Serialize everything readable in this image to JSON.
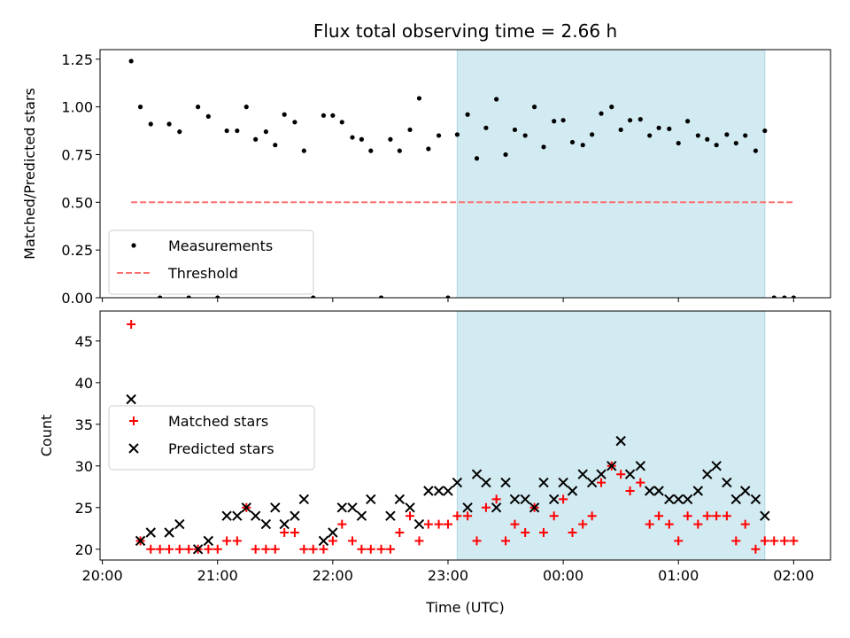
{
  "chart_data": [
    {
      "type": "scatter",
      "title": "Flux total observing time = 2.66 h",
      "xlabel": "",
      "ylabel": "Matched/Predicted stars",
      "xlim": [
        -0.02,
        6.32
      ],
      "ylim": [
        0.0,
        1.3
      ],
      "yticks": [
        0.0,
        0.25,
        0.5,
        0.75,
        1.0,
        1.25
      ],
      "ytick_labels": [
        "0.00",
        "0.25",
        "0.50",
        "0.75",
        "1.00",
        "1.25"
      ],
      "xticks": [
        0,
        1,
        2,
        3,
        4,
        5,
        6
      ],
      "grid": false,
      "legend": "lower-left",
      "shaded_region": {
        "x": [
          3.08,
          5.75
        ],
        "color": "#add8e6"
      },
      "threshold": {
        "name": "Threshold",
        "y": 0.5,
        "x": [
          0.25,
          6.0
        ],
        "color": "#ff7070"
      },
      "series": [
        {
          "name": "Measurements",
          "marker": "dot",
          "color": "#000000",
          "x": [
            0.25,
            0.33,
            0.42,
            0.5,
            0.58,
            0.67,
            0.75,
            0.83,
            0.92,
            1.0,
            1.08,
            1.17,
            1.25,
            1.33,
            1.42,
            1.5,
            1.58,
            1.67,
            1.75,
            1.83,
            1.92,
            2.0,
            2.08,
            2.17,
            2.25,
            2.33,
            2.42,
            2.5,
            2.58,
            2.67,
            2.75,
            2.83,
            2.92,
            3.0,
            3.08,
            3.17,
            3.25,
            3.33,
            3.42,
            3.5,
            3.58,
            3.67,
            3.75,
            3.83,
            3.92,
            4.0,
            4.08,
            4.17,
            4.25,
            4.33,
            4.42,
            4.5,
            4.58,
            4.67,
            4.75,
            4.83,
            4.92,
            5.0,
            5.08,
            5.17,
            5.25,
            5.33,
            5.42,
            5.5,
            5.58,
            5.67,
            5.75,
            5.83,
            5.92,
            6.0
          ],
          "y": [
            1.24,
            1.0,
            0.91,
            0.0,
            0.91,
            0.87,
            0.0,
            1.0,
            0.95,
            0.0,
            0.875,
            0.875,
            1.0,
            0.83,
            0.87,
            0.8,
            0.96,
            0.92,
            0.77,
            0.0,
            0.955,
            0.955,
            0.92,
            0.84,
            0.83,
            0.77,
            0.0,
            0.83,
            0.77,
            0.88,
            1.045,
            0.78,
            0.85,
            0.0,
            0.855,
            0.96,
            0.73,
            0.89,
            1.04,
            0.75,
            0.88,
            0.85,
            1.0,
            0.79,
            0.925,
            0.93,
            0.815,
            0.8,
            0.855,
            0.965,
            1.0,
            0.88,
            0.93,
            0.935,
            0.85,
            0.89,
            0.885,
            0.81,
            0.925,
            0.85,
            0.83,
            0.8,
            0.855,
            0.81,
            0.85,
            0.77,
            0.875,
            0.0,
            0.0,
            0.0
          ]
        }
      ]
    },
    {
      "type": "scatter",
      "title": "",
      "xlabel": "Time (UTC)",
      "ylabel": "Count",
      "xlim": [
        -0.02,
        6.32
      ],
      "ylim": [
        18.7,
        48.6
      ],
      "yticks": [
        20,
        25,
        30,
        35,
        40,
        45
      ],
      "ytick_labels": [
        "20",
        "25",
        "30",
        "35",
        "40",
        "45"
      ],
      "xticks": [
        0,
        1,
        2,
        3,
        4,
        5,
        6
      ],
      "xtick_labels": [
        "20:00",
        "21:00",
        "22:00",
        "23:00",
        "00:00",
        "01:00",
        "02:00"
      ],
      "grid": false,
      "legend": "center-left",
      "shaded_region": {
        "x": [
          3.08,
          5.75
        ],
        "color": "#add8e6"
      },
      "series": [
        {
          "name": "Matched stars",
          "marker": "plus",
          "color": "#ff0000",
          "x": [
            0.25,
            0.33,
            0.42,
            0.5,
            0.58,
            0.67,
            0.75,
            0.83,
            0.92,
            1.0,
            1.08,
            1.17,
            1.25,
            1.33,
            1.42,
            1.5,
            1.58,
            1.67,
            1.75,
            1.83,
            1.92,
            2.0,
            2.08,
            2.17,
            2.25,
            2.33,
            2.42,
            2.5,
            2.58,
            2.67,
            2.75,
            2.83,
            2.92,
            3.0,
            3.08,
            3.17,
            3.25,
            3.33,
            3.42,
            3.5,
            3.58,
            3.67,
            3.75,
            3.83,
            3.92,
            4.0,
            4.08,
            4.17,
            4.25,
            4.33,
            4.42,
            4.5,
            4.58,
            4.67,
            4.75,
            4.83,
            4.92,
            5.0,
            5.08,
            5.17,
            5.25,
            5.33,
            5.42,
            5.5,
            5.58,
            5.67,
            5.75,
            5.83,
            5.92,
            6.0
          ],
          "y": [
            47,
            21,
            20,
            20,
            20,
            20,
            20,
            20,
            20,
            20,
            21,
            21,
            25,
            20,
            20,
            20,
            22,
            22,
            20,
            20,
            20,
            21,
            23,
            21,
            20,
            20,
            20,
            20,
            22,
            24,
            21,
            23,
            23,
            23,
            24,
            24,
            21,
            25,
            26,
            21,
            23,
            22,
            25,
            22,
            24,
            26,
            22,
            23,
            24,
            28,
            30,
            29,
            27,
            28,
            23,
            24,
            23,
            21,
            24,
            23,
            24,
            24,
            24,
            21,
            23,
            20,
            21,
            21,
            21,
            21
          ]
        },
        {
          "name": "Predicted stars",
          "marker": "x",
          "color": "#000000",
          "x": [
            0.25,
            0.33,
            0.42,
            0.58,
            0.67,
            0.83,
            0.92,
            1.08,
            1.17,
            1.25,
            1.33,
            1.42,
            1.5,
            1.58,
            1.67,
            1.75,
            1.92,
            2.0,
            2.08,
            2.17,
            2.25,
            2.33,
            2.5,
            2.58,
            2.67,
            2.75,
            2.83,
            2.92,
            3.0,
            3.08,
            3.17,
            3.25,
            3.33,
            3.42,
            3.5,
            3.58,
            3.67,
            3.75,
            3.83,
            3.92,
            4.0,
            4.08,
            4.17,
            4.25,
            4.33,
            4.42,
            4.5,
            4.58,
            4.67,
            4.75,
            4.83,
            4.92,
            5.0,
            5.08,
            5.17,
            5.25,
            5.33,
            5.42,
            5.5,
            5.58,
            5.67,
            5.75
          ],
          "y": [
            38,
            21,
            22,
            22,
            23,
            20,
            21,
            24,
            24,
            25,
            24,
            23,
            25,
            23,
            24,
            26,
            21,
            22,
            25,
            25,
            24,
            26,
            24,
            26,
            25,
            23,
            27,
            27,
            27,
            28,
            25,
            29,
            28,
            25,
            28,
            26,
            26,
            25,
            28,
            26,
            28,
            27,
            29,
            28,
            29,
            30,
            33,
            29,
            30,
            27,
            27,
            26,
            26,
            26,
            27,
            29,
            30,
            28,
            26,
            27,
            26,
            24
          ]
        }
      ]
    }
  ]
}
